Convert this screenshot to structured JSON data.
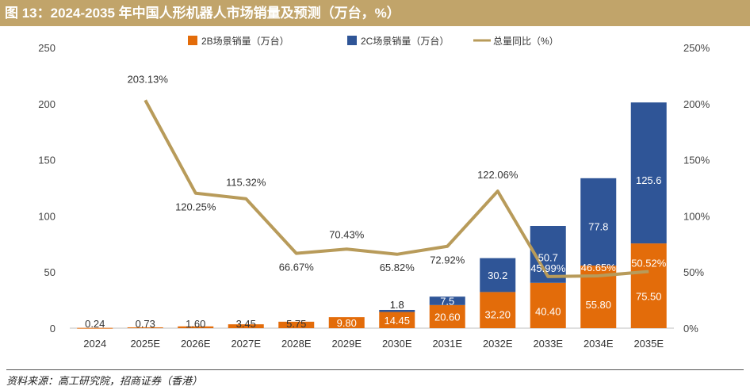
{
  "header": {
    "title": "图 13：2024-2035 年中国人形机器人市场销量及预测（万台，%）"
  },
  "source_note": "资料来源：高工研究院，招商证券（香港）",
  "colors": {
    "bar_2b": "#e36c0a",
    "bar_2c": "#2f5597",
    "line_yoy": "#b89b5a",
    "title_bg": "#c1a46a"
  },
  "chart_data": {
    "type": "bar",
    "stacked": true,
    "categories": [
      "2024",
      "2025E",
      "2026E",
      "2027E",
      "2028E",
      "2029E",
      "2030E",
      "2031E",
      "2032E",
      "2033E",
      "2034E",
      "2035E"
    ],
    "series": [
      {
        "name": "2B场景销量（万台）",
        "kind": "bar",
        "values": [
          0.24,
          0.73,
          1.6,
          3.45,
          5.75,
          9.8,
          14.45,
          20.6,
          32.2,
          40.4,
          55.8,
          75.5
        ],
        "labels": [
          "0.24",
          "0.73",
          "1.60",
          "3.45",
          "5.75",
          "9.80",
          "14.45",
          "20.60",
          "32.20",
          "40.40",
          "55.80",
          "75.50"
        ]
      },
      {
        "name": "2C场景销量（万台）",
        "kind": "bar",
        "values": [
          0,
          0,
          0,
          0,
          0,
          0,
          1.8,
          7.5,
          30.2,
          50.7,
          77.8,
          125.6
        ],
        "labels": [
          "",
          "",
          "",
          "",
          "",
          "",
          "1.8",
          "7.5",
          "30.2",
          "50.7",
          "77.8",
          "125.6"
        ]
      },
      {
        "name": "总量同比（%）",
        "kind": "line",
        "axis": "right",
        "values": [
          null,
          203.13,
          120.25,
          115.32,
          66.67,
          70.43,
          65.82,
          72.92,
          122.06,
          45.99,
          46.65,
          50.52
        ],
        "labels": [
          "",
          "203.13%",
          "120.25%",
          "115.32%",
          "66.67%",
          "70.43%",
          "65.82%",
          "72.92%",
          "122.06%",
          "45.99%",
          "46.65%",
          "50.52%"
        ]
      }
    ],
    "y_left": {
      "ylim": [
        0,
        250
      ],
      "ticks": [
        "0",
        "50",
        "100",
        "150",
        "200",
        "250"
      ]
    },
    "y_right": {
      "ylim": [
        0,
        250
      ],
      "ticks": [
        "0%",
        "50%",
        "100%",
        "150%",
        "200%",
        "250%"
      ]
    },
    "legend_position": "top",
    "grid": false
  }
}
